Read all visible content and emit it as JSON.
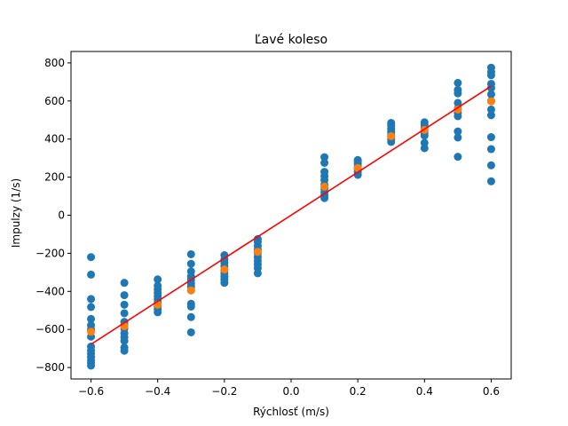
{
  "chart_data": {
    "type": "scatter",
    "title": "Ľavé koleso",
    "xlabel": "Rýchlosť (m/s)",
    "ylabel": "Impulzy (1/s)",
    "xlim": [
      -0.66,
      0.66
    ],
    "ylim": [
      -860,
      860
    ],
    "xticks": [
      -0.6,
      -0.4,
      -0.2,
      0.0,
      0.2,
      0.4,
      0.6
    ],
    "xtick_labels": [
      "−0.6",
      "−0.4",
      "−0.2",
      "0.0",
      "0.2",
      "0.4",
      "0.6"
    ],
    "yticks": [
      -800,
      -600,
      -400,
      -200,
      0,
      200,
      400,
      600,
      800
    ],
    "ytick_labels": [
      "−800",
      "−600",
      "−400",
      "−200",
      "0",
      "200",
      "400",
      "600",
      "800"
    ],
    "grid": false,
    "colors": {
      "measured": "#1f77b4",
      "mean": "#ff7f0e",
      "fit": "#ff0000"
    },
    "series": [
      {
        "kind": "scatter",
        "color": "#1f77b4",
        "points": [
          [
            -0.6,
            -220
          ],
          [
            -0.6,
            -312
          ],
          [
            -0.6,
            -440
          ],
          [
            -0.6,
            -482
          ],
          [
            -0.6,
            -545
          ],
          [
            -0.6,
            -578
          ],
          [
            -0.6,
            -600
          ],
          [
            -0.6,
            -638
          ],
          [
            -0.6,
            -690
          ],
          [
            -0.6,
            -710
          ],
          [
            -0.6,
            -728
          ],
          [
            -0.6,
            -745
          ],
          [
            -0.6,
            -762
          ],
          [
            -0.6,
            -775
          ],
          [
            -0.6,
            -790
          ],
          [
            -0.5,
            -355
          ],
          [
            -0.5,
            -420
          ],
          [
            -0.5,
            -470
          ],
          [
            -0.5,
            -515
          ],
          [
            -0.5,
            -560
          ],
          [
            -0.5,
            -575
          ],
          [
            -0.5,
            -595
          ],
          [
            -0.5,
            -620
          ],
          [
            -0.5,
            -640
          ],
          [
            -0.5,
            -660
          ],
          [
            -0.5,
            -695
          ],
          [
            -0.5,
            -712
          ],
          [
            -0.4,
            -337
          ],
          [
            -0.4,
            -370
          ],
          [
            -0.4,
            -390
          ],
          [
            -0.4,
            -408
          ],
          [
            -0.4,
            -425
          ],
          [
            -0.4,
            -442
          ],
          [
            -0.4,
            -460
          ],
          [
            -0.4,
            -478
          ],
          [
            -0.4,
            -495
          ],
          [
            -0.4,
            -510
          ],
          [
            -0.3,
            -205
          ],
          [
            -0.3,
            -255
          ],
          [
            -0.3,
            -295
          ],
          [
            -0.3,
            -322
          ],
          [
            -0.3,
            -340
          ],
          [
            -0.3,
            -358
          ],
          [
            -0.3,
            -375
          ],
          [
            -0.3,
            -395
          ],
          [
            -0.3,
            -465
          ],
          [
            -0.3,
            -480
          ],
          [
            -0.3,
            -535
          ],
          [
            -0.3,
            -615
          ],
          [
            -0.2,
            -210
          ],
          [
            -0.2,
            -232
          ],
          [
            -0.2,
            -250
          ],
          [
            -0.2,
            -268
          ],
          [
            -0.2,
            -290
          ],
          [
            -0.2,
            -305
          ],
          [
            -0.2,
            -322
          ],
          [
            -0.2,
            -338
          ],
          [
            -0.2,
            -355
          ],
          [
            -0.1,
            -125
          ],
          [
            -0.1,
            -140
          ],
          [
            -0.1,
            -160
          ],
          [
            -0.1,
            -180
          ],
          [
            -0.1,
            -200
          ],
          [
            -0.1,
            -220
          ],
          [
            -0.1,
            -240
          ],
          [
            -0.1,
            -258
          ],
          [
            -0.1,
            -278
          ],
          [
            -0.1,
            -305
          ],
          [
            0.1,
            305
          ],
          [
            0.1,
            275
          ],
          [
            0.1,
            228
          ],
          [
            0.1,
            205
          ],
          [
            0.1,
            185
          ],
          [
            0.1,
            160
          ],
          [
            0.1,
            140
          ],
          [
            0.1,
            120
          ],
          [
            0.1,
            105
          ],
          [
            0.1,
            90
          ],
          [
            0.2,
            290
          ],
          [
            0.2,
            282
          ],
          [
            0.2,
            270
          ],
          [
            0.2,
            255
          ],
          [
            0.2,
            240
          ],
          [
            0.2,
            228
          ],
          [
            0.2,
            212
          ],
          [
            0.3,
            485
          ],
          [
            0.3,
            470
          ],
          [
            0.3,
            455
          ],
          [
            0.3,
            440
          ],
          [
            0.3,
            425
          ],
          [
            0.3,
            415
          ],
          [
            0.3,
            400
          ],
          [
            0.3,
            385
          ],
          [
            0.4,
            488
          ],
          [
            0.4,
            475
          ],
          [
            0.4,
            462
          ],
          [
            0.4,
            448
          ],
          [
            0.4,
            432
          ],
          [
            0.4,
            418
          ],
          [
            0.4,
            380
          ],
          [
            0.4,
            352
          ],
          [
            0.5,
            695
          ],
          [
            0.5,
            658
          ],
          [
            0.5,
            640
          ],
          [
            0.5,
            590
          ],
          [
            0.5,
            560
          ],
          [
            0.5,
            538
          ],
          [
            0.5,
            520
          ],
          [
            0.5,
            440
          ],
          [
            0.5,
            408
          ],
          [
            0.5,
            307
          ],
          [
            0.6,
            775
          ],
          [
            0.6,
            752
          ],
          [
            0.6,
            735
          ],
          [
            0.6,
            690
          ],
          [
            0.6,
            668
          ],
          [
            0.6,
            635
          ],
          [
            0.6,
            600
          ],
          [
            0.6,
            555
          ],
          [
            0.6,
            525
          ],
          [
            0.6,
            410
          ],
          [
            0.6,
            347
          ],
          [
            0.6,
            262
          ],
          [
            0.6,
            178
          ]
        ]
      },
      {
        "kind": "scatter",
        "color": "#ff7f0e",
        "points": [
          [
            -0.6,
            -612
          ],
          [
            -0.5,
            -583
          ],
          [
            -0.4,
            -470
          ],
          [
            -0.3,
            -395
          ],
          [
            -0.2,
            -285
          ],
          [
            -0.1,
            -192
          ],
          [
            0.1,
            150
          ],
          [
            0.2,
            248
          ],
          [
            0.3,
            415
          ],
          [
            0.4,
            448
          ],
          [
            0.5,
            555
          ],
          [
            0.6,
            598
          ]
        ]
      },
      {
        "kind": "line",
        "color": "#ff0000",
        "points": [
          [
            -0.6,
            -678
          ],
          [
            0.6,
            678
          ]
        ]
      }
    ]
  }
}
